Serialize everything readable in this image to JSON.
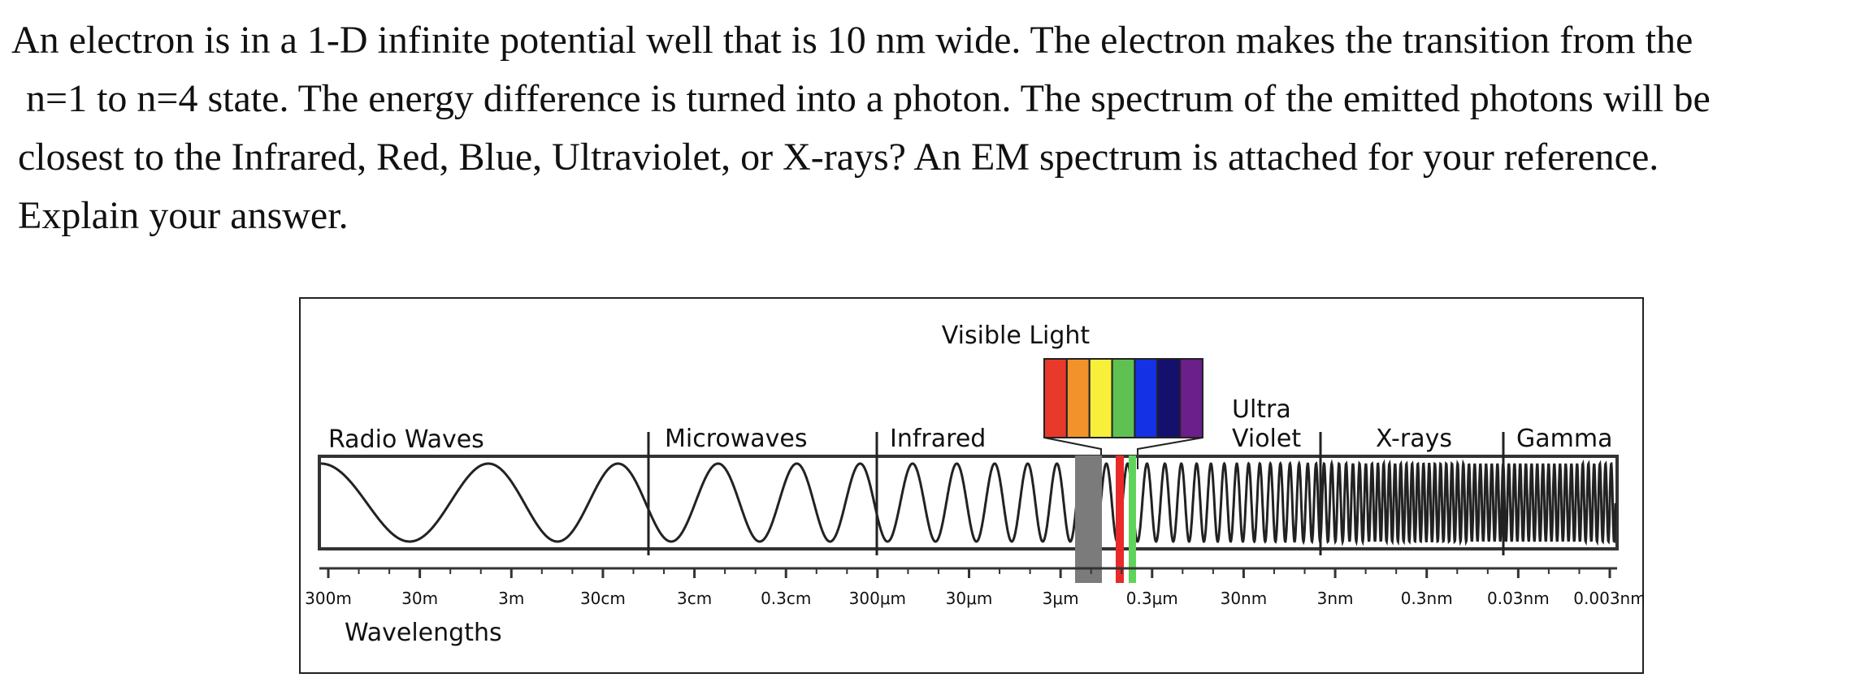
{
  "question": {
    "lines": [
      "An electron is in a 1-D infinite potential well that is 10 nm wide. The electron makes the transition from the",
      "n=1 to n=4 state. The energy difference is turned into a photon. The spectrum of the emitted photons will be",
      "closest to the Infrared, Red, Blue, Ultraviolet, or X-rays? An EM spectrum is attached for your reference.",
      "Explain your answer."
    ]
  },
  "spectrum": {
    "visible_light_label": "Visible Light",
    "visible_colors": [
      "#e8392b",
      "#f2922b",
      "#f7ef3a",
      "#5fc152",
      "#1431e6",
      "#14106e",
      "#6a1f8a"
    ],
    "region_labels": {
      "radio": "Radio Waves",
      "microwaves": "Microwaves",
      "infrared": "Infrared",
      "ultra": "Ultra",
      "violet": "Violet",
      "xrays": "X-rays",
      "gamma": "Gamma"
    },
    "tick_labels": [
      "300m",
      "30m",
      "3m",
      "30cm",
      "3cm",
      "0.3cm",
      "300μm",
      "30μm",
      "3μm",
      "0.3μm",
      "30nm",
      "3nm",
      "0.3nm",
      "0.03nm",
      "0.003nm"
    ],
    "wavelengths_label": "Wavelengths",
    "marker_colors": {
      "gray": "#7b7b7b",
      "red": "#e82a2a",
      "green": "#5fd45a"
    }
  }
}
